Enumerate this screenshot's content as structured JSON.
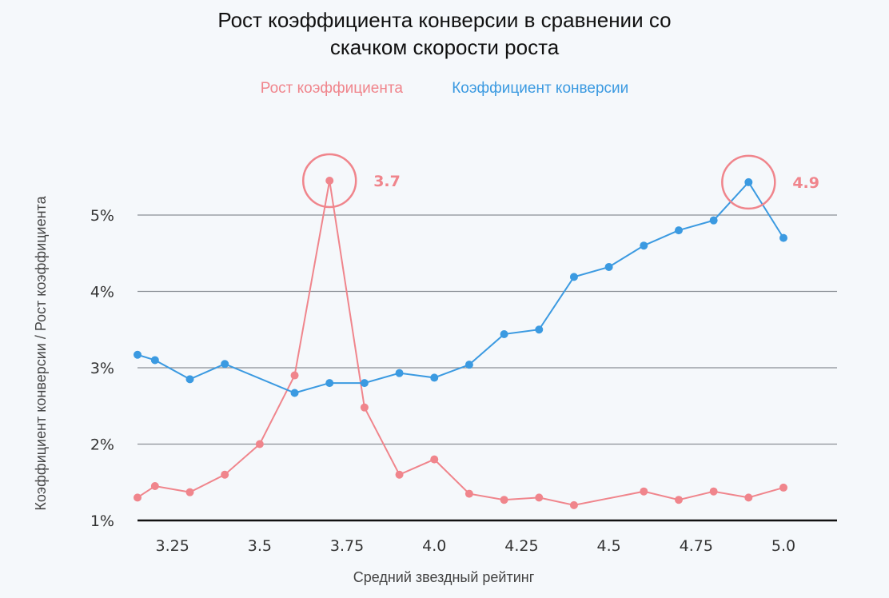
{
  "chart_data": {
    "type": "line",
    "title_lines": [
      "Рост коэффициента конверсии в сравнении со",
      "скачком скорости роста"
    ],
    "xlabel": "Средний звездный рейтинг",
    "ylabel": "Коэффициент конверсии / Рост коэффициента",
    "xlim": [
      3.15,
      5.0
    ],
    "ylim": [
      1,
      5
    ],
    "x_ticks": [
      "3.25",
      "3.5",
      "3.75",
      "4.0",
      "4.25",
      "4.5",
      "4.75",
      "5.0"
    ],
    "y_ticks": [
      "1%",
      "2%",
      "3%",
      "4%",
      "5%"
    ],
    "grid": true,
    "legend_position": "top-center",
    "x": [
      3.15,
      3.2,
      3.3,
      3.4,
      3.5,
      3.6,
      3.7,
      3.8,
      3.9,
      4.0,
      4.1,
      4.2,
      4.3,
      4.4,
      4.5,
      4.6,
      4.7,
      4.8,
      4.9,
      5.0
    ],
    "series": [
      {
        "name": "Рост коэффициента",
        "color": "#f0858c",
        "values": [
          1.3,
          1.45,
          1.37,
          1.6,
          2.0,
          2.9,
          5.45,
          2.48,
          1.6,
          1.8,
          1.35,
          1.27,
          1.3,
          1.2,
          null,
          1.38,
          1.27,
          1.38,
          1.3,
          1.43
        ]
      },
      {
        "name": "Коэффициент конверсии",
        "color": "#3b9ae1",
        "values": [
          3.17,
          3.1,
          2.85,
          3.05,
          null,
          2.67,
          2.8,
          2.8,
          2.93,
          2.87,
          3.04,
          3.44,
          3.5,
          4.19,
          4.32,
          4.6,
          4.8,
          4.93,
          5.43,
          4.7
        ]
      }
    ],
    "annotations": [
      {
        "label": "3.7",
        "x": 3.7,
        "y": 5.45,
        "color": "#f0858c"
      },
      {
        "label": "4.9",
        "x": 4.9,
        "y": 5.43,
        "color": "#f0858c"
      }
    ]
  }
}
